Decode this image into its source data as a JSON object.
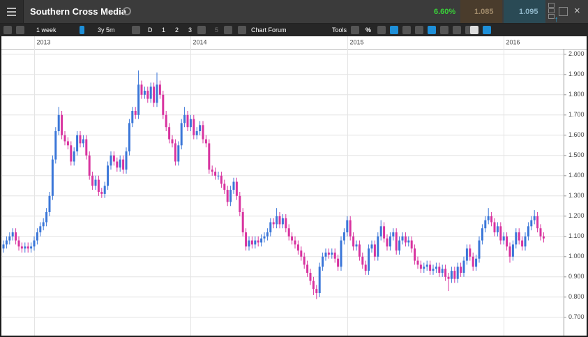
{
  "header": {
    "title": "Southern Cross Media",
    "change": "6.60%",
    "sell": "1.085",
    "buy": "1.095"
  },
  "toolbar": {
    "interval": "1 week",
    "range": "3y 5m",
    "buttons": [
      "D",
      "1",
      "2",
      "3",
      "5"
    ],
    "forum": "Chart Forum",
    "tools": "Tools",
    "percent": "%"
  },
  "chart_data": {
    "type": "candlestick",
    "categories": [
      null,
      null,
      null,
      null,
      null,
      null,
      null,
      null,
      null,
      null,
      "2013",
      null,
      null,
      null,
      null,
      null,
      null,
      null,
      null,
      null,
      null,
      null,
      null,
      null,
      null,
      null,
      null,
      null,
      null,
      null,
      null,
      null,
      null,
      null,
      null,
      null,
      null,
      null,
      null,
      null,
      null,
      null,
      null,
      null,
      null,
      null,
      null,
      null,
      null,
      null,
      null,
      null,
      null,
      null,
      null,
      null,
      null,
      null,
      null,
      null,
      null,
      "2014",
      null,
      null,
      null,
      null,
      null,
      null,
      null,
      null,
      null,
      null,
      null,
      null,
      null,
      null,
      null,
      null,
      null,
      null,
      null,
      null,
      null,
      null,
      null,
      null,
      null,
      null,
      null,
      null,
      null,
      null,
      null,
      null,
      null,
      null,
      null,
      null,
      null,
      null,
      null,
      null,
      null,
      null,
      null,
      null,
      null,
      null,
      null,
      null,
      null,
      null,
      "2015",
      null,
      null,
      null,
      null,
      null,
      null,
      null,
      null,
      null,
      null,
      null,
      null,
      null,
      null,
      null,
      null,
      null,
      null,
      null,
      null,
      null,
      null,
      null,
      null,
      null,
      null,
      null,
      null,
      null,
      null,
      null,
      null,
      null,
      null,
      null,
      null,
      null,
      null,
      null,
      null,
      null,
      null,
      null,
      null,
      null,
      null,
      null,
      null,
      null,
      null,
      "2016",
      null,
      null,
      null,
      null,
      null,
      null,
      null,
      null,
      null,
      null,
      null,
      null,
      null
    ],
    "open": [
      1.04,
      1.06,
      1.08,
      1.1,
      1.12,
      1.08,
      1.05,
      1.04,
      1.05,
      1.04,
      1.05,
      1.08,
      1.12,
      1.15,
      1.17,
      1.22,
      1.3,
      1.48,
      1.62,
      1.7,
      1.6,
      1.57,
      1.55,
      1.47,
      1.52,
      1.6,
      1.56,
      1.58,
      1.5,
      1.4,
      1.35,
      1.38,
      1.32,
      1.31,
      1.35,
      1.45,
      1.5,
      1.47,
      1.44,
      1.48,
      1.43,
      1.52,
      1.66,
      1.72,
      1.7,
      1.85,
      1.8,
      1.82,
      1.78,
      1.84,
      1.76,
      1.85,
      1.8,
      1.7,
      1.64,
      1.58,
      1.56,
      1.47,
      1.55,
      1.66,
      1.7,
      1.64,
      1.68,
      1.6,
      1.62,
      1.65,
      1.58,
      1.56,
      1.43,
      1.42,
      1.4,
      1.4,
      1.36,
      1.33,
      1.27,
      1.33,
      1.37,
      1.3,
      1.22,
      1.12,
      1.05,
      1.08,
      1.06,
      1.08,
      1.07,
      1.09,
      1.1,
      1.12,
      1.17,
      1.16,
      1.2,
      1.16,
      1.19,
      1.14,
      1.1,
      1.08,
      1.06,
      1.03,
      1.0,
      0.96,
      0.92,
      0.88,
      0.84,
      0.82,
      0.95,
      1.0,
      1.02,
      1.01,
      1.02,
      0.99,
      0.95,
      1.08,
      1.12,
      1.18,
      1.1,
      1.05,
      1.06,
      1.0,
      0.96,
      0.93,
      1.04,
      1.06,
      1.0,
      1.1,
      1.15,
      1.09,
      1.05,
      1.1,
      1.12,
      1.03,
      1.08,
      1.1,
      1.07,
      1.08,
      1.04,
      0.98,
      0.96,
      0.94,
      0.95,
      0.96,
      0.93,
      0.94,
      0.95,
      0.92,
      0.94,
      0.9,
      0.89,
      0.93,
      0.89,
      0.95,
      0.92,
      0.98,
      1.04,
      1.0,
      0.95,
      0.99,
      1.08,
      1.14,
      1.18,
      1.2,
      1.17,
      1.12,
      1.15,
      1.08,
      1.1,
      1.05,
      1.0,
      1.06,
      1.12,
      1.08,
      1.05,
      1.1,
      1.15,
      1.18,
      1.2,
      1.14,
      1.1
    ],
    "high": [
      1.08,
      1.1,
      1.12,
      1.14,
      1.14,
      1.1,
      1.07,
      1.07,
      1.07,
      1.07,
      1.1,
      1.14,
      1.17,
      1.19,
      1.24,
      1.32,
      1.5,
      1.64,
      1.74,
      1.72,
      1.62,
      1.59,
      1.57,
      1.54,
      1.62,
      1.62,
      1.6,
      1.6,
      1.52,
      1.42,
      1.4,
      1.4,
      1.34,
      1.37,
      1.47,
      1.52,
      1.52,
      1.49,
      1.5,
      1.5,
      1.54,
      1.68,
      1.74,
      1.74,
      1.92,
      1.87,
      1.84,
      1.84,
      1.86,
      1.86,
      1.91,
      1.87,
      1.82,
      1.72,
      1.66,
      1.6,
      1.58,
      1.57,
      1.68,
      1.74,
      1.72,
      1.7,
      1.7,
      1.64,
      1.67,
      1.67,
      1.6,
      1.58,
      1.45,
      1.44,
      1.42,
      1.42,
      1.38,
      1.35,
      1.35,
      1.39,
      1.39,
      1.32,
      1.24,
      1.14,
      1.1,
      1.1,
      1.1,
      1.1,
      1.11,
      1.12,
      1.14,
      1.19,
      1.19,
      1.24,
      1.22,
      1.21,
      1.21,
      1.16,
      1.12,
      1.1,
      1.08,
      1.05,
      1.02,
      0.98,
      0.94,
      0.9,
      0.86,
      0.97,
      1.02,
      1.04,
      1.04,
      1.04,
      1.04,
      1.01,
      1.1,
      1.14,
      1.2,
      1.2,
      1.12,
      1.08,
      1.08,
      1.02,
      0.98,
      1.06,
      1.08,
      1.08,
      1.12,
      1.18,
      1.17,
      1.11,
      1.12,
      1.14,
      1.14,
      1.1,
      1.12,
      1.12,
      1.1,
      1.1,
      1.06,
      1.0,
      0.98,
      0.97,
      0.98,
      0.98,
      0.96,
      0.97,
      0.97,
      0.96,
      0.96,
      0.92,
      0.95,
      0.95,
      0.97,
      0.97,
      1.0,
      1.06,
      1.06,
      1.02,
      1.01,
      1.1,
      1.16,
      1.2,
      1.24,
      1.22,
      1.19,
      1.17,
      1.17,
      1.12,
      1.12,
      1.07,
      1.08,
      1.14,
      1.14,
      1.1,
      1.12,
      1.17,
      1.2,
      1.23,
      1.22,
      1.16,
      1.12
    ],
    "low": [
      1.02,
      1.04,
      1.06,
      1.08,
      1.06,
      1.03,
      1.02,
      1.02,
      1.02,
      1.02,
      1.03,
      1.06,
      1.1,
      1.13,
      1.15,
      1.2,
      1.28,
      1.46,
      1.6,
      1.58,
      1.55,
      1.53,
      1.45,
      1.45,
      1.5,
      1.54,
      1.54,
      1.48,
      1.38,
      1.33,
      1.33,
      1.3,
      1.29,
      1.29,
      1.33,
      1.43,
      1.45,
      1.42,
      1.42,
      1.41,
      1.41,
      1.5,
      1.64,
      1.68,
      1.68,
      1.78,
      1.78,
      1.76,
      1.76,
      1.74,
      1.74,
      1.78,
      1.68,
      1.62,
      1.56,
      1.54,
      1.45,
      1.45,
      1.53,
      1.64,
      1.62,
      1.62,
      1.58,
      1.58,
      1.6,
      1.56,
      1.54,
      1.41,
      1.4,
      1.38,
      1.38,
      1.34,
      1.31,
      1.25,
      1.25,
      1.31,
      1.28,
      1.2,
      1.1,
      1.03,
      1.03,
      1.04,
      1.04,
      1.05,
      1.05,
      1.07,
      1.08,
      1.1,
      1.14,
      1.14,
      1.14,
      1.14,
      1.12,
      1.08,
      1.06,
      1.04,
      1.01,
      0.98,
      0.94,
      0.9,
      0.86,
      0.81,
      0.79,
      0.8,
      0.93,
      0.98,
      0.99,
      0.99,
      0.97,
      0.93,
      0.93,
      1.06,
      1.1,
      1.08,
      1.03,
      1.03,
      0.98,
      0.94,
      0.91,
      0.91,
      1.02,
      0.98,
      0.98,
      1.08,
      1.07,
      1.03,
      1.03,
      1.08,
      1.01,
      1.01,
      1.06,
      1.05,
      1.05,
      1.02,
      0.96,
      0.94,
      0.92,
      0.92,
      0.93,
      0.91,
      0.91,
      0.92,
      0.9,
      0.9,
      0.88,
      0.83,
      0.87,
      0.87,
      0.87,
      0.9,
      0.9,
      0.96,
      0.98,
      0.93,
      0.93,
      0.97,
      1.06,
      1.12,
      1.16,
      1.15,
      1.1,
      1.1,
      1.06,
      1.06,
      1.03,
      0.97,
      0.98,
      1.04,
      1.06,
      1.03,
      1.03,
      1.08,
      1.13,
      1.16,
      1.12,
      1.08,
      1.07
    ],
    "close": [
      1.06,
      1.08,
      1.1,
      1.12,
      1.08,
      1.05,
      1.04,
      1.05,
      1.04,
      1.05,
      1.08,
      1.12,
      1.15,
      1.17,
      1.22,
      1.3,
      1.48,
      1.62,
      1.7,
      1.6,
      1.57,
      1.55,
      1.47,
      1.52,
      1.6,
      1.56,
      1.58,
      1.5,
      1.4,
      1.35,
      1.38,
      1.32,
      1.31,
      1.35,
      1.45,
      1.5,
      1.47,
      1.44,
      1.48,
      1.43,
      1.52,
      1.66,
      1.72,
      1.7,
      1.85,
      1.8,
      1.82,
      1.78,
      1.84,
      1.76,
      1.85,
      1.8,
      1.7,
      1.64,
      1.58,
      1.56,
      1.47,
      1.55,
      1.66,
      1.7,
      1.64,
      1.68,
      1.6,
      1.62,
      1.65,
      1.58,
      1.56,
      1.43,
      1.42,
      1.4,
      1.4,
      1.36,
      1.33,
      1.27,
      1.33,
      1.37,
      1.3,
      1.22,
      1.12,
      1.05,
      1.08,
      1.06,
      1.08,
      1.07,
      1.09,
      1.1,
      1.12,
      1.17,
      1.16,
      1.2,
      1.16,
      1.19,
      1.14,
      1.1,
      1.08,
      1.06,
      1.03,
      1.0,
      0.96,
      0.92,
      0.88,
      0.84,
      0.82,
      0.95,
      1.0,
      1.02,
      1.01,
      1.02,
      0.99,
      0.95,
      1.08,
      1.12,
      1.18,
      1.1,
      1.05,
      1.06,
      1.0,
      0.96,
      0.93,
      1.04,
      1.06,
      1.0,
      1.1,
      1.15,
      1.09,
      1.05,
      1.1,
      1.12,
      1.03,
      1.08,
      1.1,
      1.07,
      1.08,
      1.04,
      0.98,
      0.96,
      0.94,
      0.95,
      0.96,
      0.93,
      0.94,
      0.95,
      0.92,
      0.94,
      0.9,
      0.89,
      0.93,
      0.89,
      0.95,
      0.92,
      0.98,
      1.04,
      1.0,
      0.95,
      0.99,
      1.08,
      1.14,
      1.18,
      1.2,
      1.17,
      1.12,
      1.15,
      1.08,
      1.1,
      1.05,
      1.0,
      1.06,
      1.12,
      1.08,
      1.05,
      1.1,
      1.15,
      1.18,
      1.2,
      1.14,
      1.1,
      1.09
    ],
    "colors": {
      "up": "#3a76d8",
      "down": "#d8339f"
    },
    "ylim": [
      0.62,
      2.02
    ],
    "yticks": [
      {
        "value": 0.7,
        "label": "0.700"
      },
      {
        "value": 0.8,
        "label": "0.800"
      },
      {
        "value": 0.9,
        "label": "0.900"
      },
      {
        "value": 1.0,
        "label": "1.000"
      },
      {
        "value": 1.1,
        "label": "1.100"
      },
      {
        "value": 1.2,
        "label": "1.200"
      },
      {
        "value": 1.3,
        "label": "1.300"
      },
      {
        "value": 1.4,
        "label": "1.400"
      },
      {
        "value": 1.5,
        "label": "1.500"
      },
      {
        "value": 1.6,
        "label": "1.600"
      },
      {
        "value": 1.7,
        "label": "1.700"
      },
      {
        "value": 1.8,
        "label": "1.800"
      },
      {
        "value": 1.9,
        "label": "1.900"
      },
      {
        "value": 2.0,
        "label": "2.000"
      }
    ],
    "grid": true
  }
}
